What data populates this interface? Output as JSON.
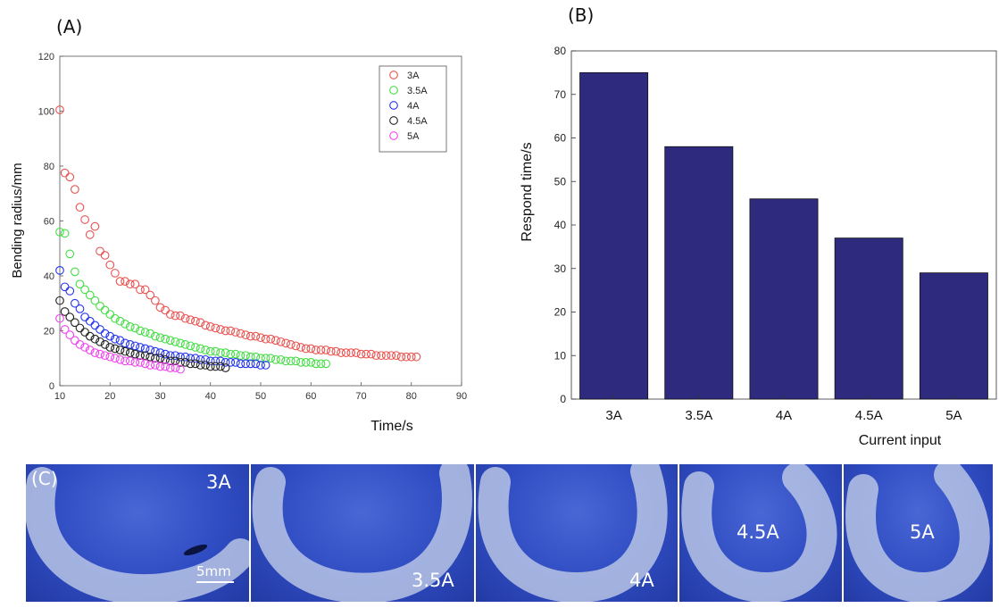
{
  "panels": {
    "a_label": "(A)",
    "b_label": "(B)",
    "c_label": "(C)"
  },
  "chart_data": [
    {
      "type": "scatter",
      "title": "",
      "xlabel": "Time/s",
      "ylabel": "Bending radius/mm",
      "xlim": [
        10,
        90
      ],
      "ylim": [
        0,
        120
      ],
      "xticks": [
        10,
        20,
        30,
        40,
        50,
        60,
        70,
        80,
        90
      ],
      "yticks": [
        0,
        20,
        40,
        60,
        80,
        100,
        120
      ],
      "legend_position": "top-right",
      "marker": "open-circle",
      "series": [
        {
          "name": "3A",
          "color": "#e8524f",
          "x": [
            10,
            11,
            12,
            13,
            14,
            15,
            16,
            17,
            18,
            19,
            20,
            21,
            22,
            23,
            24,
            25,
            26,
            27,
            28,
            29,
            30,
            31,
            32,
            33,
            34,
            35,
            36,
            37,
            38,
            39,
            40,
            41,
            42,
            43,
            44,
            45,
            46,
            47,
            48,
            49,
            50,
            51,
            52,
            53,
            54,
            55,
            56,
            57,
            58,
            59,
            60,
            61,
            62,
            63,
            64,
            65,
            66,
            67,
            68,
            69,
            70,
            71,
            72,
            73,
            74,
            75,
            76,
            77,
            78,
            79,
            80,
            81
          ],
          "y": [
            100.5,
            77.5,
            76,
            71.5,
            65,
            60.5,
            55,
            58,
            49,
            47.5,
            44,
            41,
            38,
            38,
            37,
            37,
            35,
            35,
            33,
            31,
            28.5,
            27.5,
            26,
            25.5,
            25.5,
            24.5,
            24,
            23.5,
            23,
            22,
            21.5,
            21,
            20.5,
            20,
            20,
            19.5,
            19,
            18.5,
            18,
            18,
            17.5,
            17,
            17,
            16.5,
            16,
            15.5,
            15,
            14.5,
            14,
            13.5,
            13.5,
            13,
            13,
            13,
            12.5,
            12.5,
            12,
            12,
            12,
            12,
            11.5,
            11.5,
            11.5,
            11,
            11,
            11,
            11,
            11,
            10.5,
            10.5,
            10.5,
            10.5
          ]
        },
        {
          "name": "3.5A",
          "color": "#44dd44",
          "x": [
            10,
            11,
            12,
            13,
            14,
            15,
            16,
            17,
            18,
            19,
            20,
            21,
            22,
            23,
            24,
            25,
            26,
            27,
            28,
            29,
            30,
            31,
            32,
            33,
            34,
            35,
            36,
            37,
            38,
            39,
            40,
            41,
            42,
            43,
            44,
            45,
            46,
            47,
            48,
            49,
            50,
            51,
            52,
            53,
            54,
            55,
            56,
            57,
            58,
            59,
            60,
            61,
            62,
            63
          ],
          "y": [
            56,
            55.5,
            48,
            41.5,
            37,
            35,
            33,
            31,
            29,
            27.5,
            26,
            24.5,
            23.5,
            22.5,
            21.5,
            21,
            20,
            19.5,
            19,
            18,
            17.5,
            17,
            16.5,
            16,
            15.5,
            15,
            14.5,
            14,
            13.5,
            13,
            12.5,
            12.5,
            12,
            12,
            11.5,
            11.5,
            11,
            11,
            10.5,
            10.5,
            10,
            10,
            10,
            9.5,
            9.5,
            9,
            9,
            9,
            8.5,
            8.5,
            8.5,
            8,
            8,
            8
          ]
        },
        {
          "name": "4A",
          "color": "#2233ee",
          "x": [
            10,
            11,
            12,
            13,
            14,
            15,
            16,
            17,
            18,
            19,
            20,
            21,
            22,
            23,
            24,
            25,
            26,
            27,
            28,
            29,
            30,
            31,
            32,
            33,
            34,
            35,
            36,
            37,
            38,
            39,
            40,
            41,
            42,
            43,
            44,
            45,
            46,
            47,
            48,
            49,
            50,
            51
          ],
          "y": [
            42,
            36,
            34.5,
            30,
            28,
            25,
            23.5,
            22,
            20.5,
            19,
            18,
            17,
            16.5,
            15.5,
            15,
            14.5,
            14,
            13.5,
            13,
            12.5,
            12,
            11.5,
            11,
            11,
            10.5,
            10.5,
            10,
            10,
            9.5,
            9.5,
            9,
            9,
            9,
            8.5,
            8.5,
            8.5,
            8,
            8,
            8,
            8,
            7.5,
            7.5
          ]
        },
        {
          "name": "4.5A",
          "color": "#222222",
          "x": [
            10,
            11,
            12,
            13,
            14,
            15,
            16,
            17,
            18,
            19,
            20,
            21,
            22,
            23,
            24,
            25,
            26,
            27,
            28,
            29,
            30,
            31,
            32,
            33,
            34,
            35,
            36,
            37,
            38,
            39,
            40,
            41,
            42,
            43
          ],
          "y": [
            31,
            27,
            25,
            23,
            21,
            19.5,
            18,
            17,
            16,
            15,
            14,
            13.5,
            13,
            12.5,
            12,
            11.5,
            11,
            11,
            10.5,
            10,
            10,
            9.5,
            9,
            9,
            8.5,
            8.5,
            8,
            8,
            7.5,
            7.5,
            7,
            7,
            7,
            6.5
          ]
        },
        {
          "name": "5A",
          "color": "#ee44ee",
          "x": [
            10,
            11,
            12,
            13,
            14,
            15,
            16,
            17,
            18,
            19,
            20,
            21,
            22,
            23,
            24,
            25,
            26,
            27,
            28,
            29,
            30,
            31,
            32,
            33,
            34
          ],
          "y": [
            24.5,
            20.5,
            18.5,
            16.5,
            15,
            14,
            13,
            12,
            11.5,
            11,
            10.5,
            10,
            9.5,
            9,
            9,
            8.5,
            8.5,
            8,
            7.5,
            7.5,
            7,
            7,
            6.5,
            6.5,
            6
          ]
        }
      ]
    },
    {
      "type": "bar",
      "title": "",
      "xlabel": "Current input",
      "ylabel": "Respond time/s",
      "categories": [
        "3A",
        "3.5A",
        "4A",
        "4.5A",
        "5A"
      ],
      "values": [
        75,
        58,
        46,
        37,
        29
      ],
      "ylim": [
        0,
        80
      ],
      "yticks": [
        0,
        10,
        20,
        30,
        40,
        50,
        60,
        70,
        80
      ],
      "bar_color": "#2e2a7e"
    }
  ],
  "photos": [
    {
      "label": "3A"
    },
    {
      "label": "3.5A"
    },
    {
      "label": "4A"
    },
    {
      "label": "4.5A"
    },
    {
      "label": "5A"
    }
  ],
  "scale_bar_label": "5mm"
}
